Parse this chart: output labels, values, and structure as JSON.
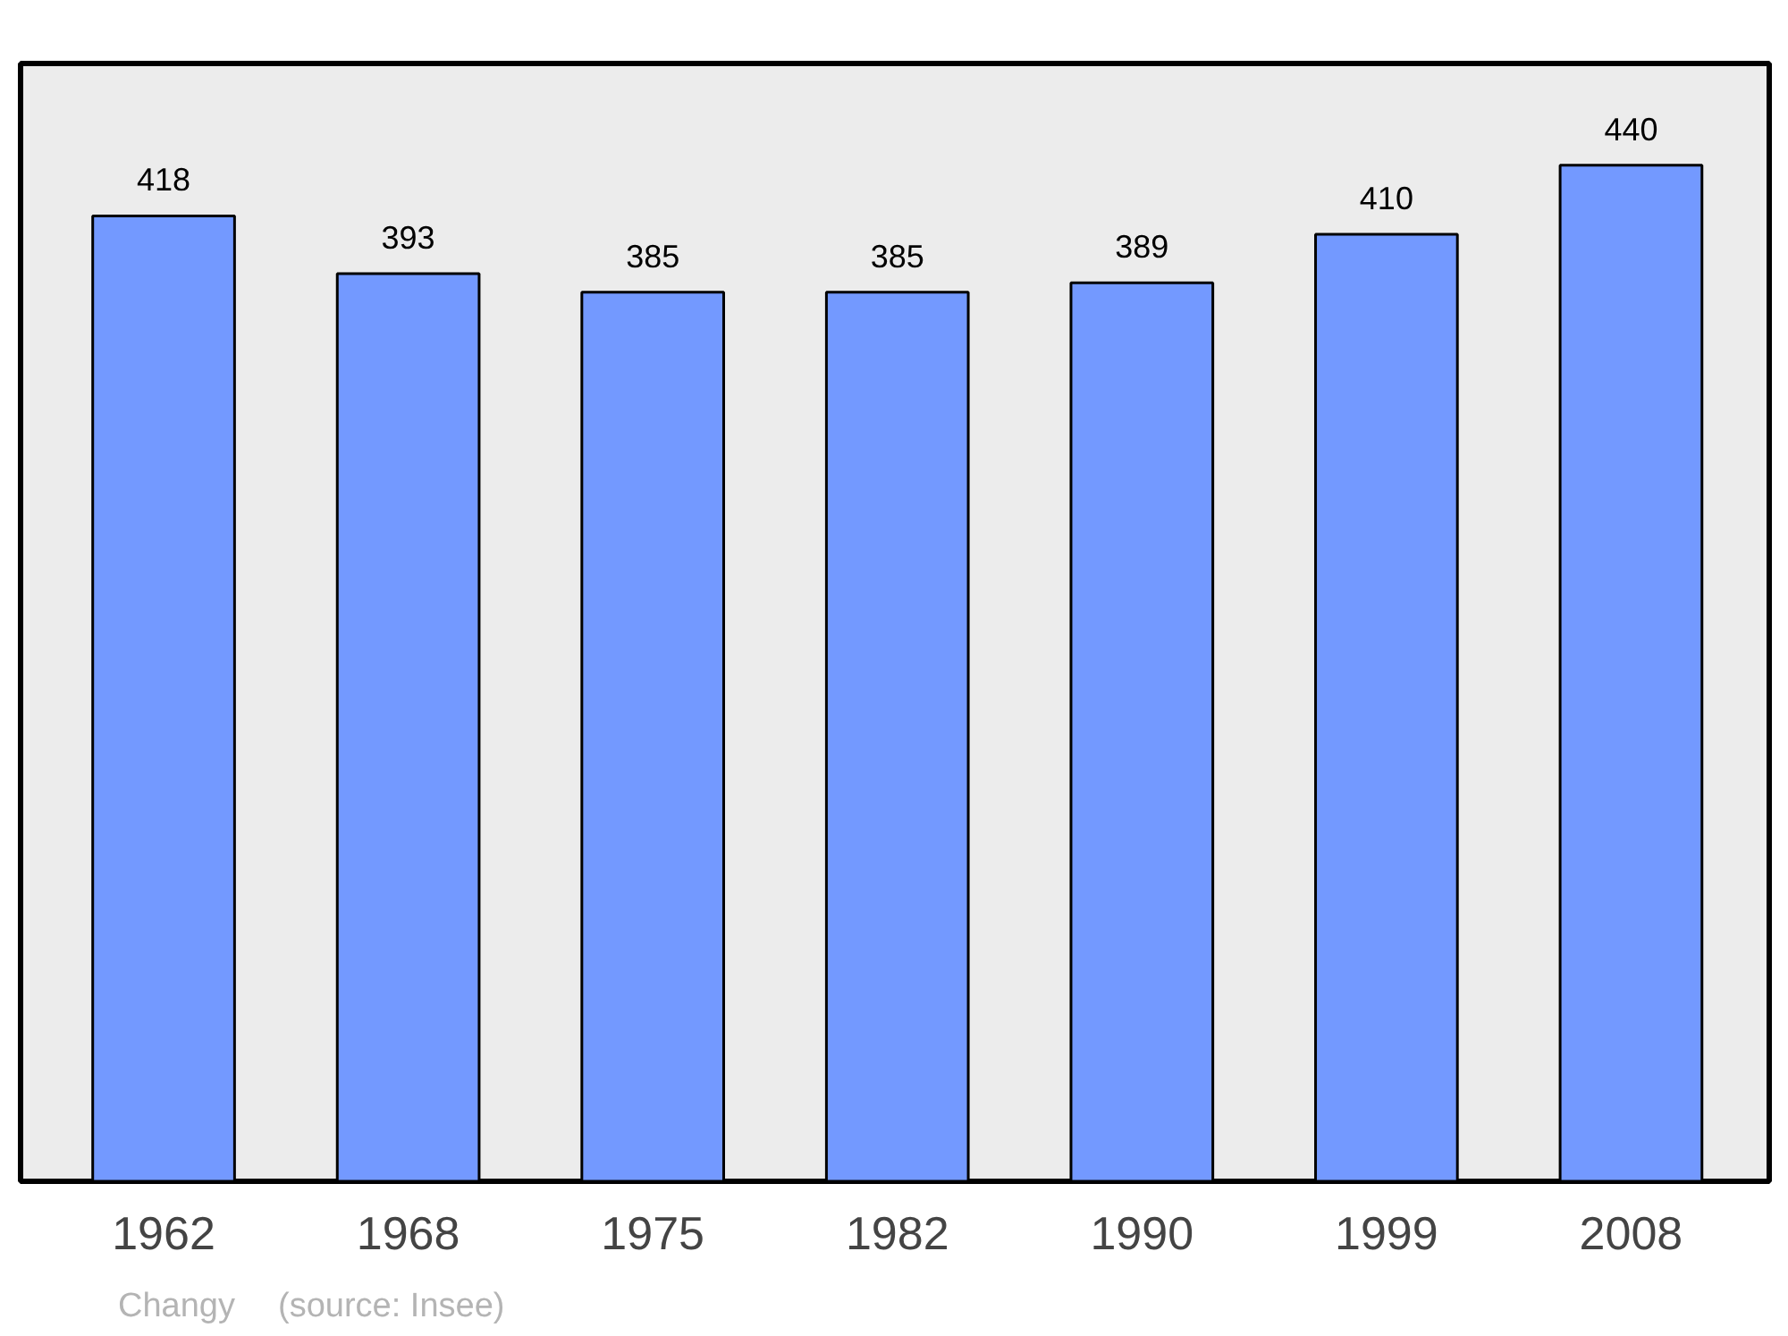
{
  "chart_data": {
    "type": "bar",
    "categories": [
      "1962",
      "1968",
      "1975",
      "1982",
      "1990",
      "1999",
      "2008"
    ],
    "values": [
      418,
      393,
      385,
      385,
      389,
      410,
      440
    ],
    "color": "#7399ff",
    "ylim": [
      0,
      484
    ],
    "data_labels": true,
    "grid": false,
    "tick_labels": "x",
    "annotations": [
      "Changy",
      "(source: Insee)"
    ]
  }
}
